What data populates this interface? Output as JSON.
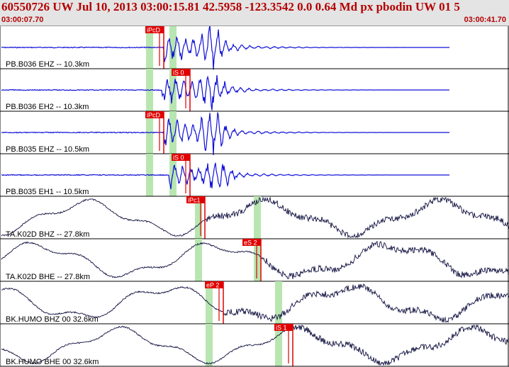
{
  "header": {
    "title": "60550726 UW Jul 10, 2013 03:00:15.81   42.5958 -123.3542   0.0 0.64 Md px pbodin UW 01   5",
    "time_start": "03:00:07.70",
    "time_end": "03:00:41.70"
  },
  "colors": {
    "title": "#b40000",
    "pick_label_bg": "#e00000",
    "pick_line": "#e00000",
    "pick_window": "#b8e6b0",
    "trace_local": "#1010d8",
    "trace_regional": "#101040",
    "panel_border": "#000000"
  },
  "chart_data": {
    "type": "line",
    "x_range": [
      "03:00:07.70",
      "03:00:41.70"
    ],
    "channels": [
      {
        "label": "PB.B036 EHZ -- 10.3km",
        "pick": "iPcD"
      },
      {
        "label": "PB.B036 EH2 -- 10.3km",
        "pick": "iS 0"
      },
      {
        "label": "PB.B035 EHZ -- 10.5km",
        "pick": "iPcD"
      },
      {
        "label": "PB.B035 EH1 -- 10.5km",
        "pick": "iS 0"
      },
      {
        "label": "TA.K02D BHZ -- 27.8km",
        "pick": "iPc1"
      },
      {
        "label": "TA.K02D BHE -- 27.8km",
        "pick": "eS 2"
      },
      {
        "label": "BK.HUMO BHZ 00 32.6km",
        "pick": "eP 2"
      },
      {
        "label": "BK.HUMO BHE 00 32.6km",
        "pick": "iS 1"
      }
    ]
  }
}
